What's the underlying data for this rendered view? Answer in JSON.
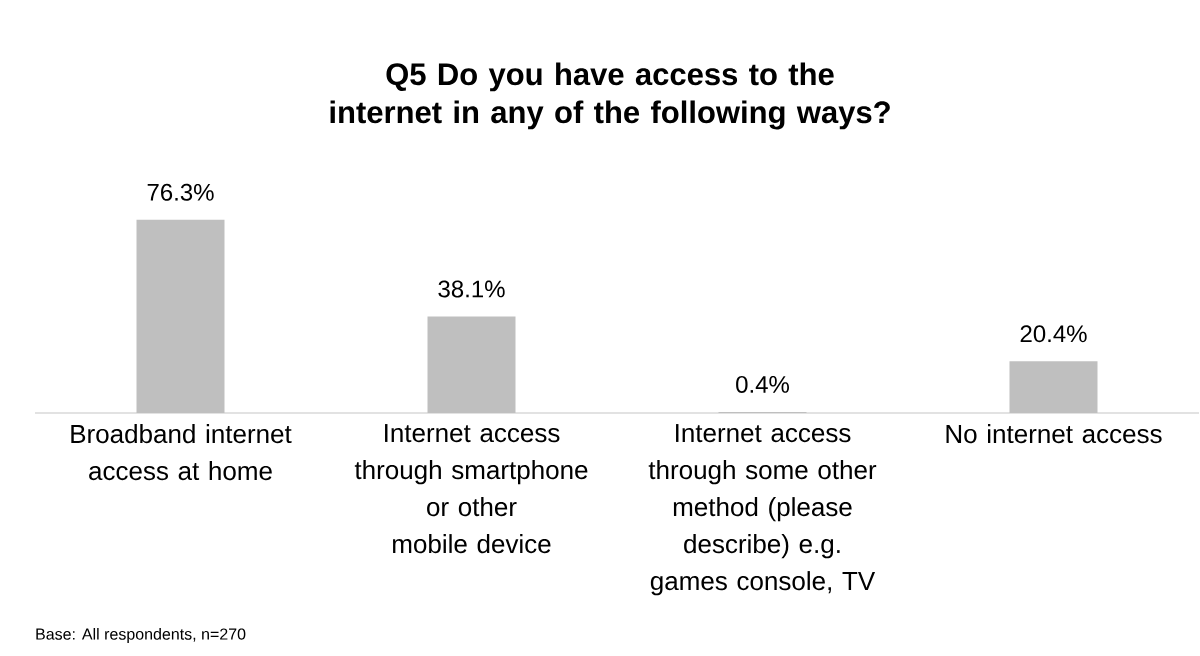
{
  "chart_data": {
    "type": "bar",
    "title": "Q5 Do you have access to the internet in any of the following ways?",
    "categories": [
      "Broadband internet access at home",
      "Internet access through smartphone or other mobile device",
      "Internet access through some other method (please describe) e.g. games console, TV",
      "No internet access"
    ],
    "values": [
      76.3,
      38.1,
      0.4,
      20.4
    ],
    "value_labels": [
      "76.3%",
      "38.1%",
      "0.4%",
      "20.4%"
    ],
    "color": "#bfbfbf",
    "annotations": [
      "Base: All respondents, n=270"
    ]
  }
}
